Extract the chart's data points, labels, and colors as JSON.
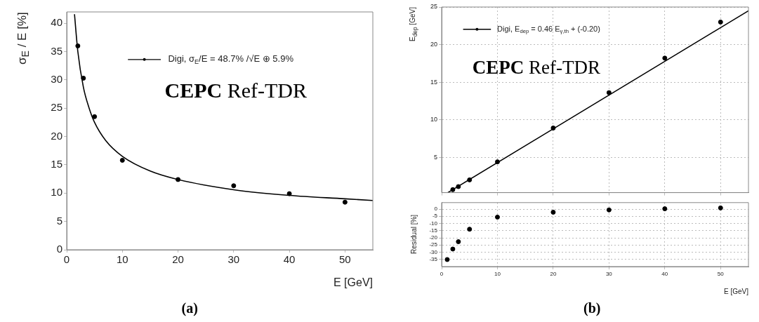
{
  "chart_data": [
    {
      "type": "scatter",
      "xlabel": "E [GeV]",
      "ylabel": "σ$_{E}$ / E [%]",
      "xlim": [
        0,
        55
      ],
      "xticks": [
        0,
        10,
        20,
        30,
        40,
        50
      ],
      "ylim": [
        0,
        42
      ],
      "yticks": [
        0,
        5,
        10,
        15,
        20,
        25,
        30,
        35,
        40
      ],
      "marker": "circle",
      "legend": "top right",
      "series": [
        {
          "name": "Digi, σ$_{E}$/E = 48.7% /√E ⊕ 5.9%",
          "color": "#000000",
          "x": [
            2,
            3,
            5,
            10,
            20,
            30,
            40,
            50
          ],
          "values": [
            36,
            30.3,
            23.5,
            15.8,
            12.4,
            11.3,
            9.9,
            8.4
          ]
        },
        {
          "type": "line",
          "marker": "none",
          "color": "#000000",
          "x": [
            1.4,
            2,
            3,
            4,
            5,
            7,
            10,
            15,
            20,
            30,
            40,
            50,
            55
          ],
          "values": [
            41.6,
            35,
            28.7,
            25.1,
            22.5,
            19.3,
            16.5,
            13.9,
            12.4,
            10.6,
            9.6,
            9.0,
            8.7
          ]
        }
      ],
      "annotations": [
        "CEPC Ref-TDR",
        "(a)"
      ]
    },
    {
      "type": "scatter",
      "ylabel": "E$_{dep}$ [GeV]",
      "xlim": [
        0,
        55
      ],
      "xticks": [
        0,
        10,
        20,
        30,
        40,
        50
      ],
      "ylim": [
        0.3,
        25
      ],
      "yticks": [
        5,
        10,
        15,
        20,
        25
      ],
      "tick_labels": "y",
      "grid": true,
      "marker": "circle",
      "legend": "top left",
      "series": [
        {
          "name": "Digi, E$_{dep}$ = 0.46 E$_{γ,th}$ + (-0.20)",
          "color": "#000000",
          "x": [
            2,
            3,
            5,
            10,
            20,
            30,
            40,
            50
          ],
          "values": [
            0.7,
            1.1,
            2.0,
            4.4,
            8.9,
            13.6,
            18.2,
            23.0
          ]
        },
        {
          "type": "line",
          "marker": "none",
          "color": "#000000",
          "x": [
            1.1,
            55
          ],
          "values": [
            0.3,
            24.5
          ]
        }
      ],
      "annotations": [
        "CEPC Ref-TDR"
      ]
    },
    {
      "type": "scatter",
      "xlabel": "E [GeV]",
      "ylabel": "Residual [%]",
      "xlim": [
        0,
        55
      ],
      "xticks": [
        0,
        10,
        20,
        30,
        40,
        50
      ],
      "ylim": [
        -40,
        4.5
      ],
      "yticks": [
        0,
        -5,
        -10,
        -15,
        -20,
        -25,
        -30,
        -35
      ],
      "grid": true,
      "marker": "circle",
      "series": [
        {
          "color": "#000000",
          "x": [
            1,
            2,
            3,
            5,
            10,
            20,
            30,
            40,
            50
          ],
          "values": [
            -35.1,
            -27.8,
            -22.7,
            -14.0,
            -5.6,
            -2.2,
            -0.6,
            0.2,
            0.8
          ]
        }
      ],
      "annotations": [
        "(b)"
      ]
    }
  ]
}
